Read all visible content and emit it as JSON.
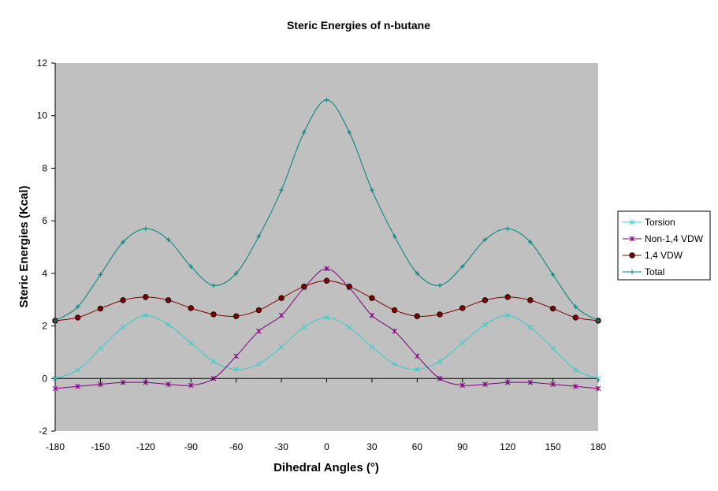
{
  "chart_data": {
    "type": "line",
    "title": "Steric Energies of n-butane",
    "xlabel": "Dihedral Angles (°)",
    "ylabel": "Steric Energies (Kcal)",
    "xlim": [
      -180,
      180
    ],
    "ylim": [
      -2,
      12
    ],
    "x_ticks": [
      "-180",
      "-150",
      "-120",
      "-90",
      "-60",
      "-30",
      "0",
      "30",
      "60",
      "90",
      "120",
      "150",
      "180"
    ],
    "y_ticks": [
      "-2",
      "0",
      "2",
      "4",
      "6",
      "8",
      "10",
      "12"
    ],
    "grid": false,
    "legend_position": "right",
    "background": "#c0c0c0",
    "x": [
      -180,
      -165,
      -150,
      -135,
      -120,
      -105,
      -90,
      -75,
      -60,
      -45,
      -30,
      -15,
      0,
      15,
      30,
      45,
      60,
      75,
      90,
      105,
      120,
      135,
      150,
      165,
      180
    ],
    "series": [
      {
        "name": "Torsion",
        "color": "#33cccc",
        "marker": "x",
        "values": [
          0.0,
          0.33,
          1.15,
          1.95,
          2.4,
          2.05,
          1.35,
          0.65,
          0.35,
          0.55,
          1.2,
          1.95,
          2.32,
          1.95,
          1.2,
          0.55,
          0.35,
          0.65,
          1.35,
          2.05,
          2.4,
          1.95,
          1.15,
          0.33,
          0.0
        ]
      },
      {
        "name": "Non-1,4 VDW",
        "color": "#800080",
        "marker": "asterisk",
        "values": [
          -0.38,
          -0.3,
          -0.22,
          -0.15,
          -0.15,
          -0.22,
          -0.26,
          0.0,
          0.85,
          1.8,
          2.4,
          3.45,
          4.18,
          3.45,
          2.4,
          1.8,
          0.85,
          0.0,
          -0.26,
          -0.22,
          -0.15,
          -0.15,
          -0.22,
          -0.3,
          -0.38
        ]
      },
      {
        "name": "1,4 VDW",
        "color": "#800000",
        "marker": "circle",
        "values": [
          2.2,
          2.32,
          2.66,
          2.98,
          3.1,
          2.98,
          2.68,
          2.44,
          2.37,
          2.6,
          3.06,
          3.5,
          3.72,
          3.5,
          3.06,
          2.6,
          2.37,
          2.44,
          2.68,
          2.98,
          3.1,
          2.98,
          2.66,
          2.32,
          2.2
        ]
      },
      {
        "name": "Total",
        "color": "#008080",
        "marker": "plus",
        "values": [
          2.2,
          2.73,
          3.95,
          5.19,
          5.7,
          5.28,
          4.26,
          3.54,
          4.0,
          5.41,
          7.17,
          9.37,
          10.6,
          9.37,
          7.17,
          5.41,
          4.0,
          3.54,
          4.26,
          5.28,
          5.7,
          5.19,
          3.95,
          2.73,
          2.2
        ]
      }
    ]
  }
}
